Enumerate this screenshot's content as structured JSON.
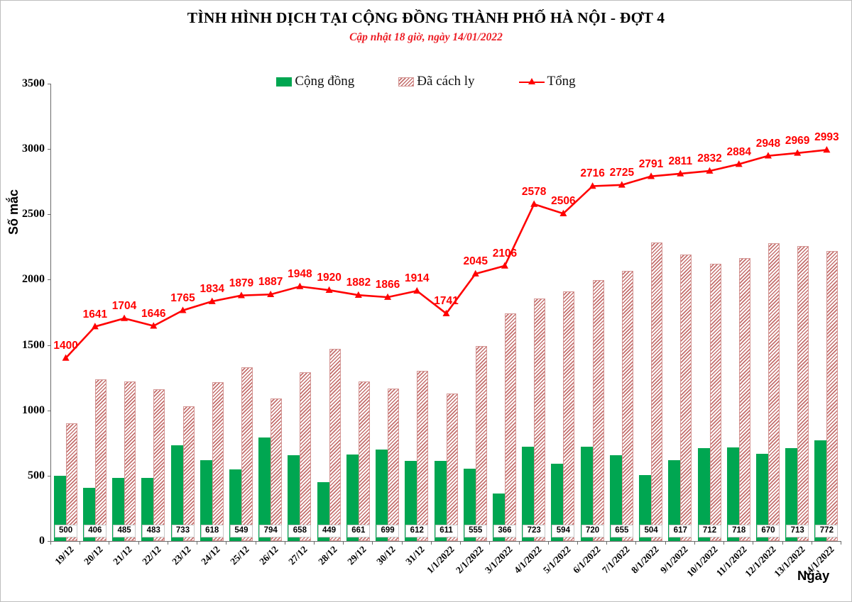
{
  "header": {
    "title": "TÌNH HÌNH DỊCH TẠI CỘNG ĐỒNG THÀNH PHỐ HÀ NỘI - ĐỢT 4",
    "subtitle": "Cập nhật 18 giờ, ngày 14/01/2022"
  },
  "legend": {
    "community": "Cộng đồng",
    "quarantined": "Đã cách ly",
    "total": "Tổng"
  },
  "axes": {
    "y_label": "Số mắc",
    "x_label": "Ngày",
    "y_ticks": [
      3500,
      3000,
      2500,
      2000,
      1500,
      1000,
      500,
      0
    ]
  },
  "colors": {
    "green_bar": "#00A651",
    "hatch_stripe": "#c4706e",
    "hatch_border": "#d49593",
    "line_red": "#ff0000",
    "subtitle_red": "#ed1c24",
    "axis_gray": "#6b6b6b"
  },
  "chart_data": {
    "type": "bar+line",
    "title": "TÌNH HÌNH DỊCH TẠI CỘNG ĐỒNG THÀNH PHỐ HÀ NỘI - ĐỢT 4",
    "xlabel": "Ngày",
    "ylabel": "Số mắc",
    "ylim": [
      0,
      3500
    ],
    "grid": false,
    "legend_position": "top",
    "categories": [
      "19/12",
      "20/12",
      "21/12",
      "22/12",
      "23/12",
      "24/12",
      "25/12",
      "26/12",
      "27/12",
      "28/12",
      "29/12",
      "30/12",
      "31/12",
      "1/1/2022",
      "2/1/2022",
      "3/1/2022",
      "4/1/2022",
      "5/1/2022",
      "6/1/2022",
      "7/1/2022",
      "8/1/2022",
      "9/1/2022",
      "10/1/2022",
      "11/1/2022",
      "12/1/2022",
      "13/1/2022",
      "14/1/2022"
    ],
    "series": [
      {
        "name": "Cộng đồng",
        "type": "bar",
        "style": "solid-green",
        "values": [
          500,
          406,
          485,
          483,
          733,
          618,
          549,
          794,
          658,
          449,
          661,
          699,
          612,
          611,
          555,
          366,
          723,
          594,
          720,
          655,
          504,
          617,
          712,
          718,
          670,
          713,
          772
        ]
      },
      {
        "name": "Đã cách ly",
        "type": "bar",
        "style": "red-hatch",
        "values": [
          900,
          1235,
          1219,
          1163,
          1032,
          1216,
          1330,
          1093,
          1290,
          1471,
          1221,
          1167,
          1302,
          1130,
          1490,
          1740,
          1855,
          1912,
          1996,
          2070,
          2287,
          2194,
          2120,
          2166,
          2278,
          2256,
          2221
        ]
      },
      {
        "name": "Tổng",
        "type": "line",
        "style": "red-triangle-markers",
        "values": [
          1400,
          1641,
          1704,
          1646,
          1765,
          1834,
          1879,
          1887,
          1948,
          1920,
          1882,
          1866,
          1914,
          1741,
          2045,
          2106,
          2578,
          2506,
          2716,
          2725,
          2791,
          2811,
          2832,
          2884,
          2948,
          2969,
          2993
        ]
      }
    ],
    "bar_value_labels_position": "inside-bottom",
    "line_value_labels_position": "above-points"
  }
}
